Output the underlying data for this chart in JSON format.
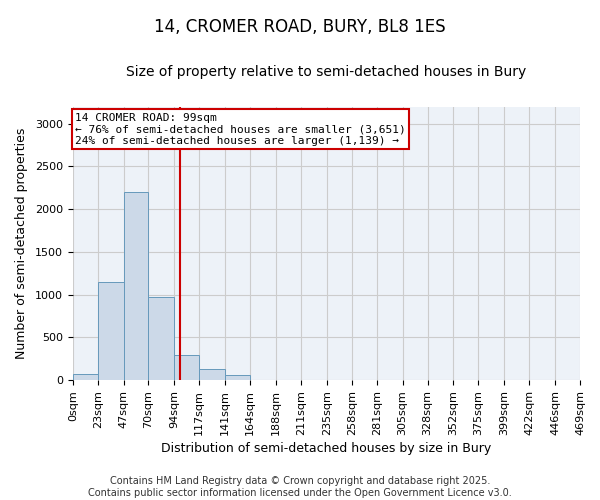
{
  "title": "14, CROMER ROAD, BURY, BL8 1ES",
  "subtitle": "Size of property relative to semi-detached houses in Bury",
  "xlabel": "Distribution of semi-detached houses by size in Bury",
  "ylabel": "Number of semi-detached properties",
  "footer1": "Contains HM Land Registry data © Crown copyright and database right 2025.",
  "footer2": "Contains public sector information licensed under the Open Government Licence v3.0.",
  "annotation_line1": "14 CROMER ROAD: 99sqm",
  "annotation_line2": "← 76% of semi-detached houses are smaller (3,651)",
  "annotation_line3": "24% of semi-detached houses are larger (1,139) →",
  "property_size": 99,
  "bin_edges": [
    0,
    23,
    47,
    70,
    94,
    117,
    141,
    164,
    188,
    211,
    235,
    258,
    281,
    305,
    328,
    352,
    375,
    399,
    422,
    446,
    469
  ],
  "bar_heights": [
    75,
    1150,
    2200,
    970,
    290,
    130,
    60,
    0,
    0,
    0,
    0,
    0,
    0,
    0,
    0,
    0,
    0,
    0,
    0,
    0
  ],
  "bar_color": "#ccd9e8",
  "bar_edge_color": "#6699bb",
  "vline_color": "#cc0000",
  "vline_x": 99,
  "ylim": [
    0,
    3200
  ],
  "yticks": [
    0,
    500,
    1000,
    1500,
    2000,
    2500,
    3000
  ],
  "grid_color": "#cccccc",
  "bg_color": "#edf2f8",
  "annotation_box_color": "#cc0000",
  "title_fontsize": 12,
  "subtitle_fontsize": 10,
  "axis_label_fontsize": 9,
  "tick_fontsize": 8,
  "footer_fontsize": 7
}
